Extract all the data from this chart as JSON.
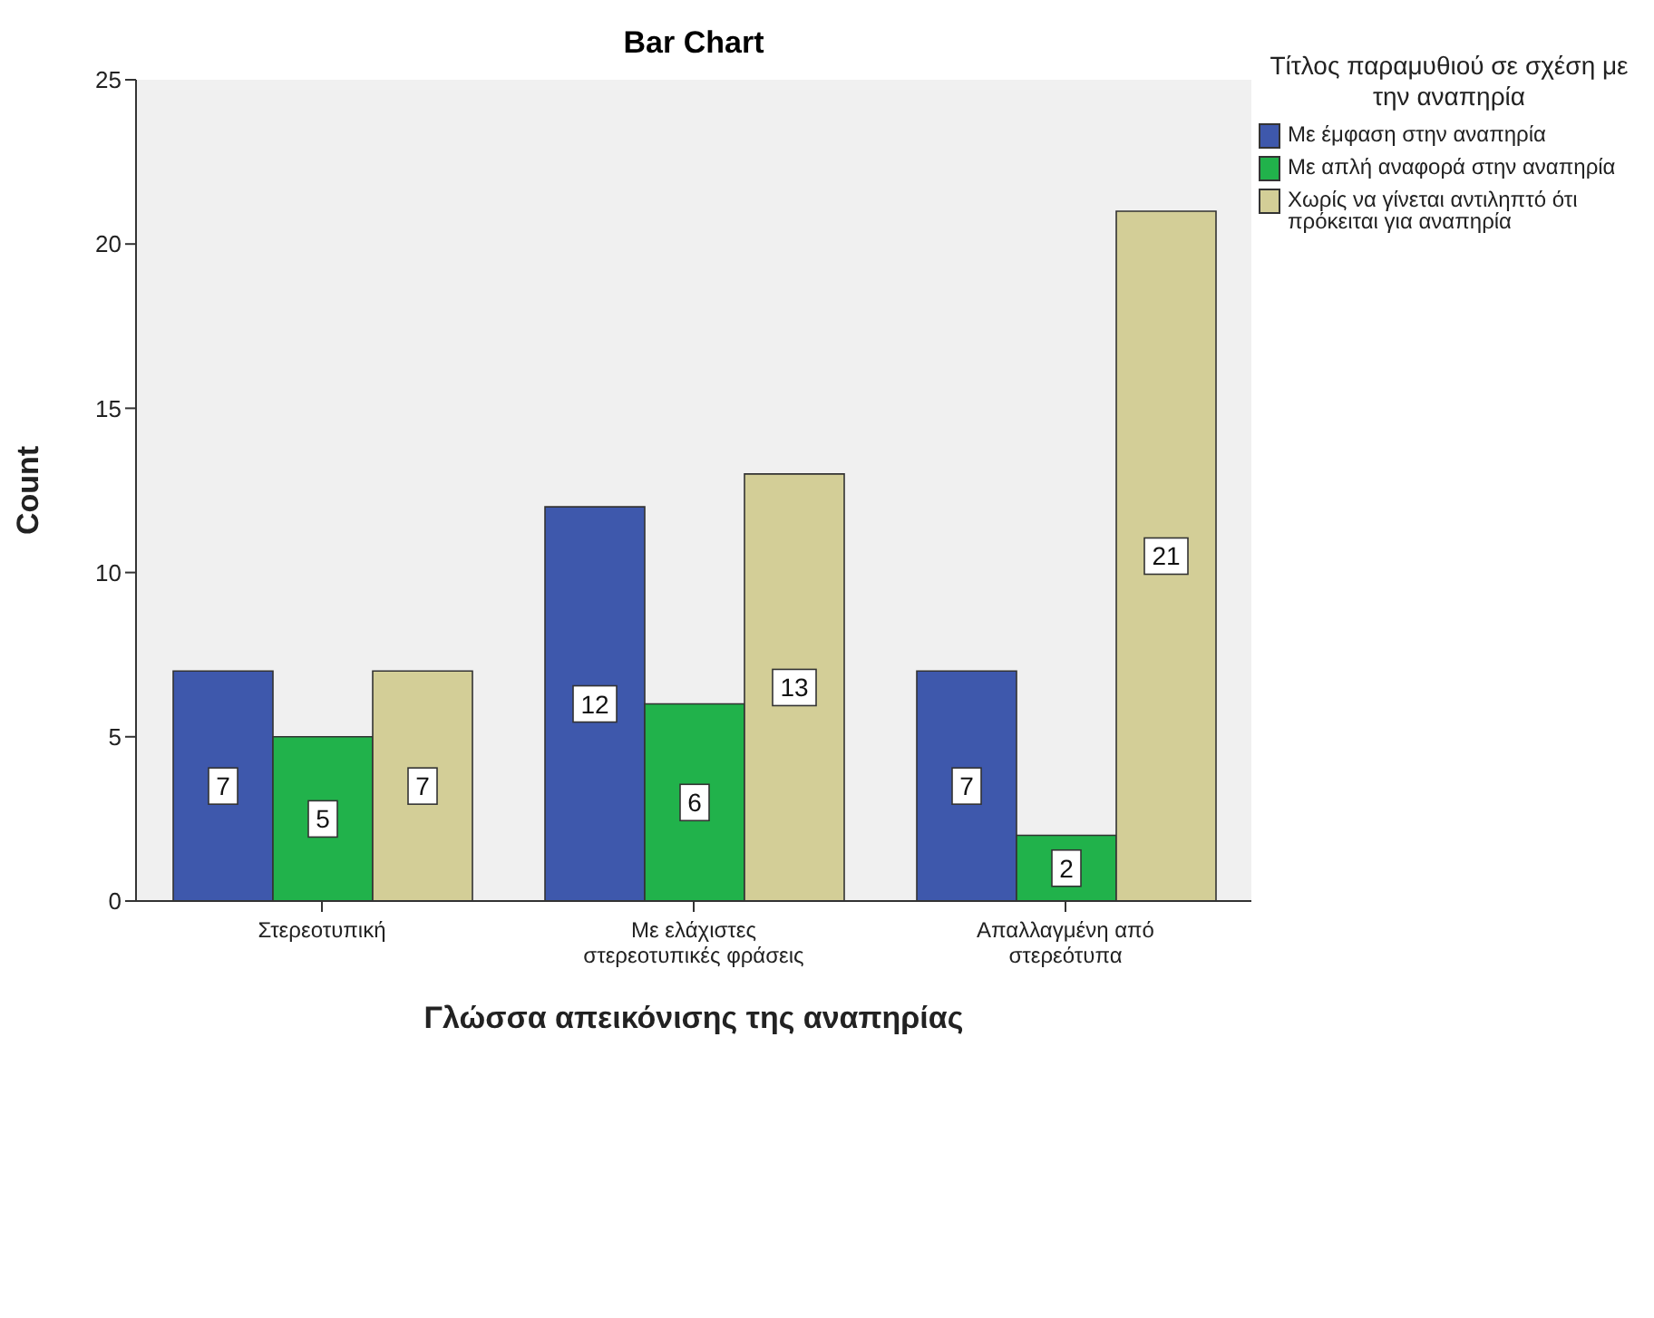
{
  "chart_data": {
    "type": "bar",
    "title": "Bar Chart",
    "xlabel": "Γλώσσα απεικόνισης της αναπηρίας",
    "ylabel": "Count",
    "legend_title": "Τίτλος παραμυθιού σε σχέση με την αναπηρία",
    "categories": [
      "Στερεοτυπική",
      "Με ελάχιστες στερεοτυπικές φράσεις",
      "Απαλλαγμένη από στερεότυπα"
    ],
    "series": [
      {
        "name": "Με έμφαση στην αναπηρία",
        "color": "#3e58ac",
        "values": [
          7,
          12,
          7
        ]
      },
      {
        "name": "Με απλή αναφορά στην αναπηρία",
        "color": "#21b24b",
        "values": [
          5,
          6,
          2
        ]
      },
      {
        "name": "Χωρίς να γίνεται αντιληπτό ότι πρόκειται για αναπηρία",
        "color": "#d3ce97",
        "values": [
          7,
          13,
          21
        ]
      }
    ],
    "ylim": [
      0,
      25
    ],
    "yticks": [
      0,
      5,
      10,
      15,
      20,
      25
    ],
    "grid": false,
    "legend": "top right",
    "data_labels": true
  }
}
